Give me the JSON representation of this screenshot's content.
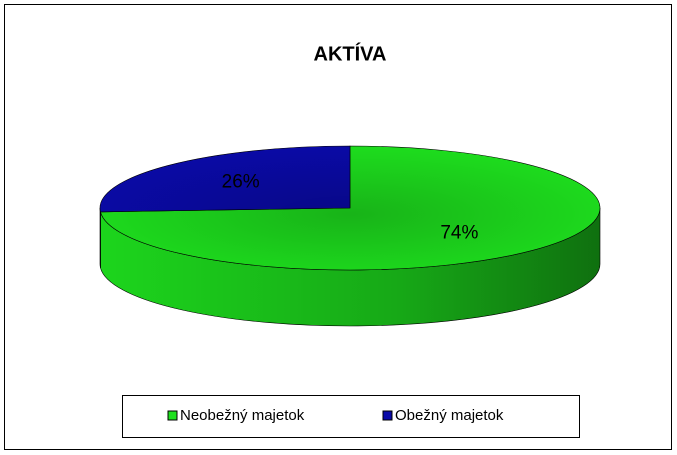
{
  "chart_data": {
    "type": "pie",
    "title": "AKTÍVA",
    "categories": [
      "Neobežný majetok",
      "Obežný majetok"
    ],
    "values": [
      74,
      26
    ],
    "value_labels": [
      "74%",
      "26%"
    ],
    "colors": [
      "#1ee01e",
      "#0a0aa8"
    ],
    "legend": "bottom"
  }
}
